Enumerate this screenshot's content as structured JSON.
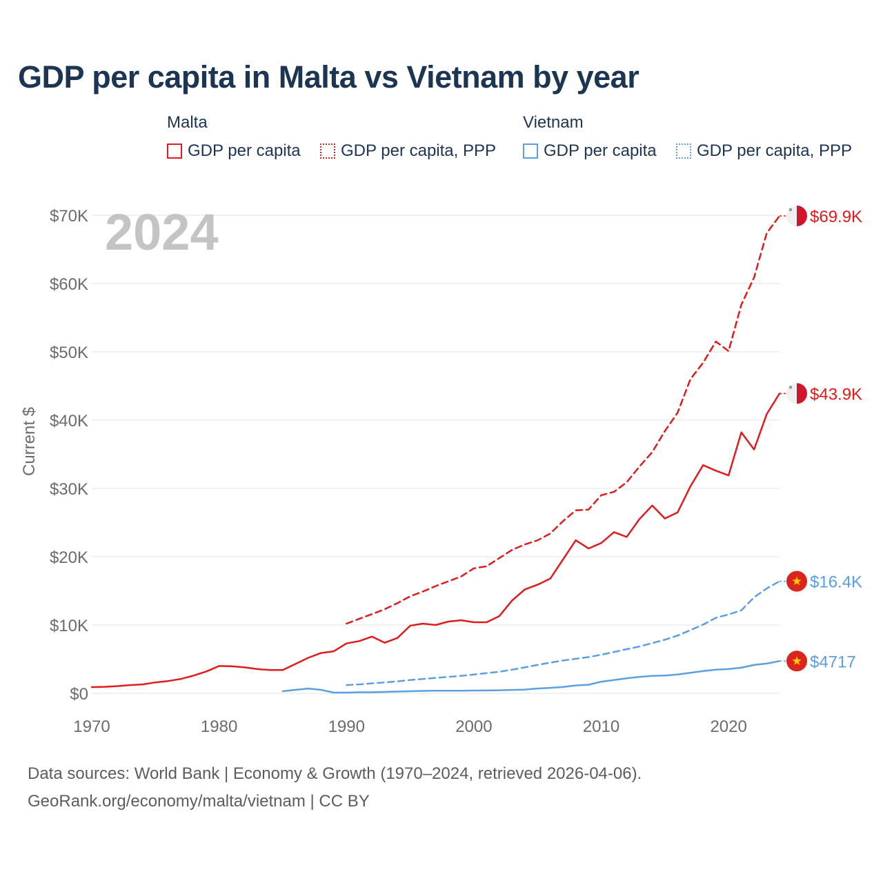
{
  "title": "GDP per capita in Malta vs Vietnam by year",
  "legend": {
    "groups": [
      {
        "name": "Malta",
        "items": [
          "GDP per capita",
          "GDP per capita, PPP"
        ],
        "color": "#e01b1b"
      },
      {
        "name": "Vietnam",
        "items": [
          "GDP per capita",
          "GDP per capita, PPP"
        ],
        "color": "#5b9fe0"
      }
    ]
  },
  "year_label": "2024",
  "footer": {
    "line1": "Data sources: World Bank | Economy & Growth (1970–2024, retrieved 2026-04-06).",
    "line2": "GeoRank.org/economy/malta/vietnam | CC BY"
  },
  "chart_data": {
    "type": "line",
    "title": "GDP per capita in Malta vs Vietnam by year",
    "xlabel": "",
    "ylabel": "Current $",
    "xlim": [
      1970,
      2024
    ],
    "ylim": [
      0,
      70000
    ],
    "x_ticks": [
      1970,
      1980,
      1990,
      2000,
      2010,
      2020
    ],
    "x_tick_labels": [
      "1970",
      "1980",
      "1990",
      "2000",
      "2010",
      "2020"
    ],
    "y_ticks": [
      0,
      10000,
      20000,
      30000,
      40000,
      50000,
      60000,
      70000
    ],
    "y_tick_labels": [
      "$0",
      "$10K",
      "$20K",
      "$30K",
      "$40K",
      "$50K",
      "$60K",
      "$70K"
    ],
    "grid": true,
    "series": [
      {
        "name": "Malta — GDP per capita",
        "color": "#e01b1b",
        "style": "solid",
        "x": [
          1970,
          1971,
          1972,
          1973,
          1974,
          1975,
          1976,
          1977,
          1978,
          1979,
          1980,
          1981,
          1982,
          1983,
          1984,
          1985,
          1986,
          1987,
          1988,
          1989,
          1990,
          1991,
          1992,
          1993,
          1994,
          1995,
          1996,
          1997,
          1998,
          1999,
          2000,
          2001,
          2002,
          2003,
          2004,
          2005,
          2006,
          2007,
          2008,
          2009,
          2010,
          2011,
          2012,
          2013,
          2014,
          2015,
          2016,
          2017,
          2018,
          2019,
          2020,
          2021,
          2022,
          2023,
          2024
        ],
        "values": [
          900,
          950,
          1050,
          1200,
          1300,
          1600,
          1800,
          2100,
          2600,
          3200,
          4000,
          3950,
          3800,
          3550,
          3400,
          3400,
          4300,
          5200,
          5900,
          6150,
          7300,
          7650,
          8300,
          7400,
          8100,
          9900,
          10200,
          10000,
          10500,
          10700,
          10400,
          10400,
          11300,
          13600,
          15200,
          15900,
          16800,
          19600,
          22400,
          21200,
          22000,
          23600,
          22900,
          25500,
          27500,
          25600,
          26500,
          30300,
          33400,
          32600,
          31900,
          38200,
          35700,
          40900,
          43900
        ],
        "end_label": "$43.9K"
      },
      {
        "name": "Malta — GDP per capita, PPP",
        "color": "#e01b1b",
        "style": "dashed",
        "x": [
          1990,
          1991,
          1992,
          1993,
          1994,
          1995,
          1996,
          1997,
          1998,
          1999,
          2000,
          2001,
          2002,
          2003,
          2004,
          2005,
          2006,
          2007,
          2008,
          2009,
          2010,
          2011,
          2012,
          2013,
          2014,
          2015,
          2016,
          2017,
          2018,
          2019,
          2020,
          2021,
          2022,
          2023,
          2024
        ],
        "values": [
          10200,
          10900,
          11600,
          12300,
          13200,
          14200,
          14900,
          15700,
          16400,
          17100,
          18300,
          18600,
          19800,
          21000,
          21800,
          22400,
          23400,
          25200,
          26800,
          26900,
          29000,
          29500,
          30900,
          33200,
          35300,
          38400,
          41100,
          46000,
          48400,
          51500,
          50100,
          56900,
          60900,
          67400,
          69900
        ],
        "end_label": "$69.9K"
      },
      {
        "name": "Vietnam — GDP per capita",
        "color": "#5b9fe0",
        "style": "solid",
        "x": [
          1985,
          1986,
          1987,
          1988,
          1989,
          1990,
          1991,
          1992,
          1993,
          1994,
          1995,
          1996,
          1997,
          1998,
          1999,
          2000,
          2001,
          2002,
          2003,
          2004,
          2005,
          2006,
          2007,
          2008,
          2009,
          2010,
          2011,
          2012,
          2013,
          2014,
          2015,
          2016,
          2017,
          2018,
          2019,
          2020,
          2021,
          2022,
          2023,
          2024
        ],
        "values": [
          300,
          500,
          700,
          500,
          100,
          100,
          150,
          150,
          200,
          250,
          300,
          350,
          380,
          370,
          380,
          400,
          410,
          440,
          490,
          550,
          700,
          800,
          920,
          1150,
          1250,
          1700,
          1950,
          2200,
          2400,
          2560,
          2600,
          2750,
          3000,
          3250,
          3450,
          3550,
          3750,
          4150,
          4350,
          4717
        ],
        "end_label": "$4717"
      },
      {
        "name": "Vietnam — GDP per capita, PPP",
        "color": "#5b9fe0",
        "style": "dashed",
        "x": [
          1990,
          1991,
          1992,
          1993,
          1994,
          1995,
          1996,
          1997,
          1998,
          1999,
          2000,
          2001,
          2002,
          2003,
          2004,
          2005,
          2006,
          2007,
          2008,
          2009,
          2010,
          2011,
          2012,
          2013,
          2014,
          2015,
          2016,
          2017,
          2018,
          2019,
          2020,
          2021,
          2022,
          2023,
          2024
        ],
        "values": [
          1200,
          1300,
          1450,
          1600,
          1750,
          1950,
          2100,
          2250,
          2400,
          2550,
          2750,
          2950,
          3150,
          3450,
          3800,
          4150,
          4500,
          4800,
          5050,
          5300,
          5650,
          6050,
          6450,
          6850,
          7350,
          7850,
          8450,
          9250,
          10050,
          11050,
          11550,
          12150,
          14050,
          15350,
          16400
        ],
        "end_label": "$16.4K"
      }
    ]
  }
}
